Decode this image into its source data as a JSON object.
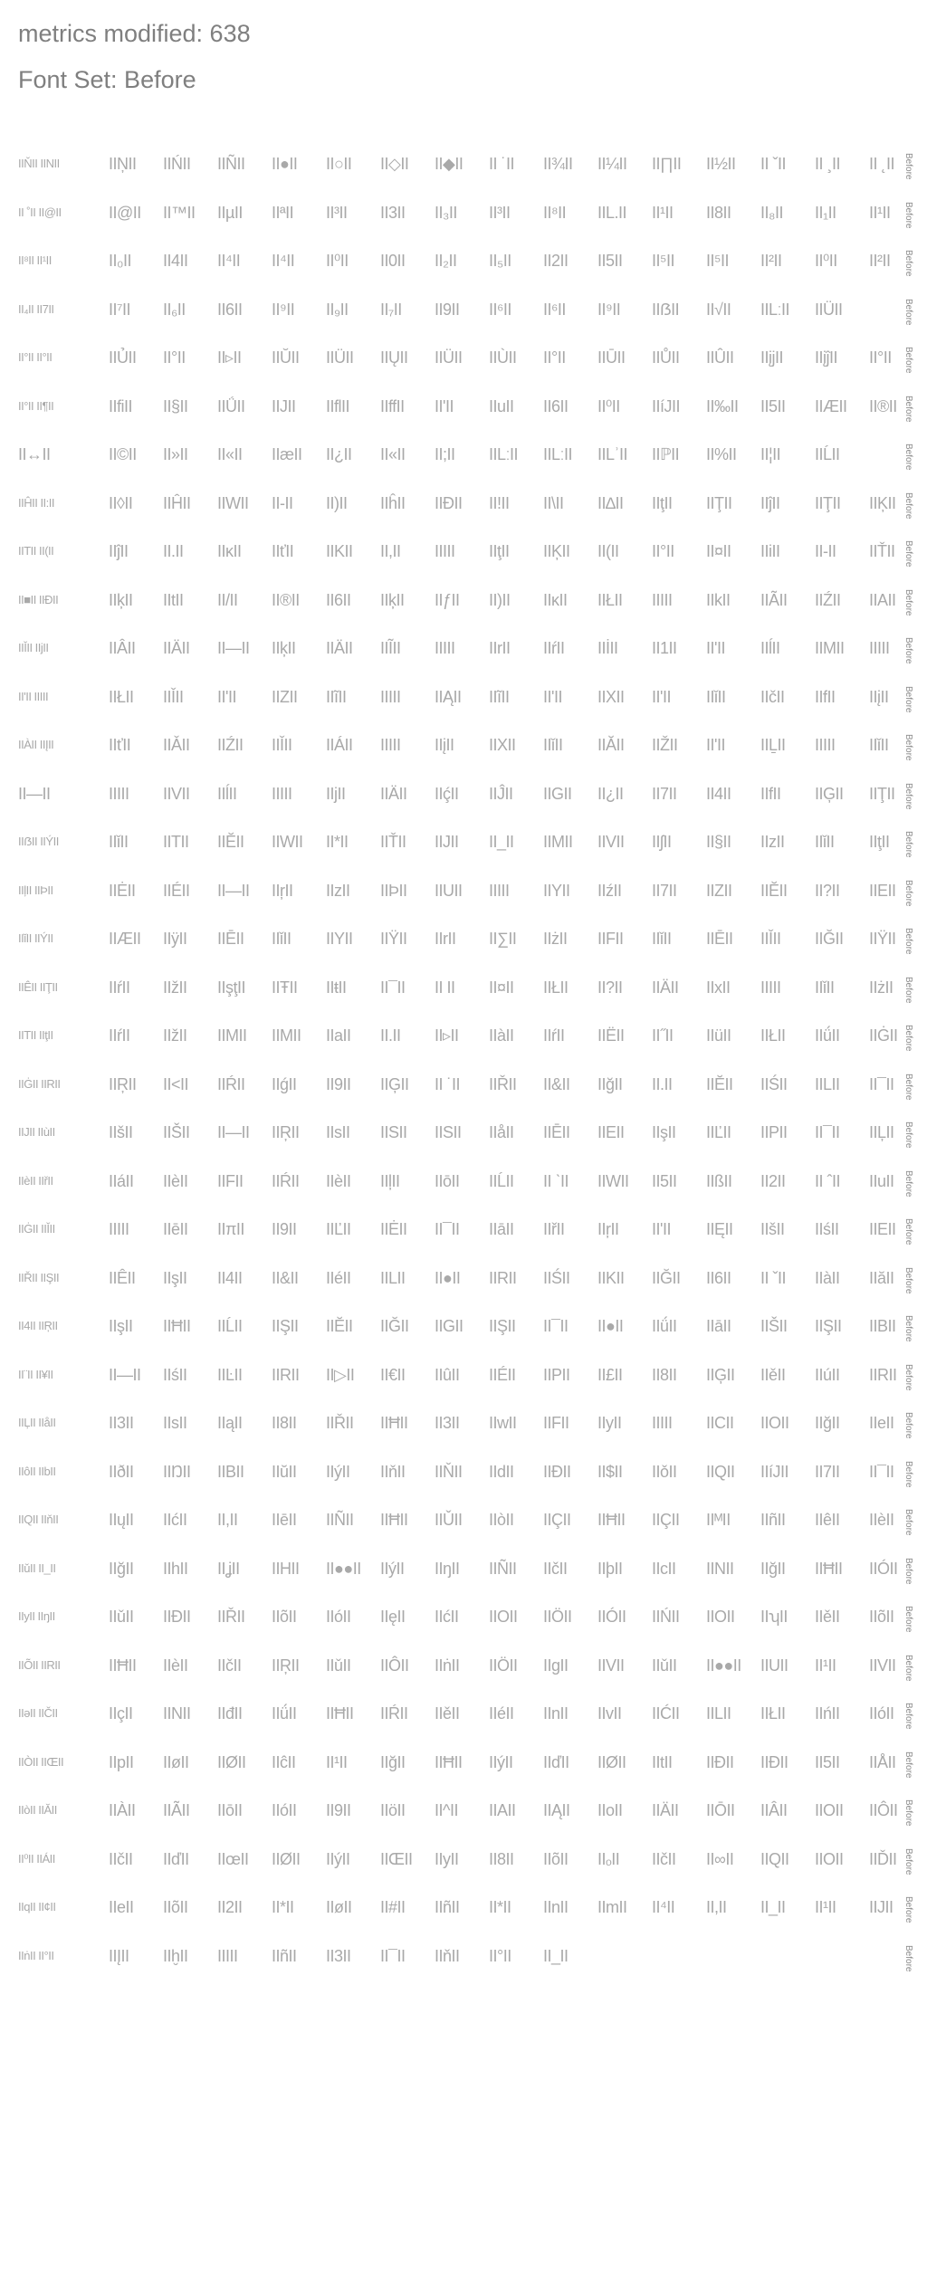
{
  "header": {
    "line1": "metrics modified: 638",
    "line2": "Font Set: Before"
  },
  "row_tag": "Before",
  "rows": [
    [
      "IIŇII IINII",
      "IIŅII",
      "IIŃII",
      "IIÑII",
      "II●II",
      "II○II",
      "II◇II",
      "II◆II",
      "II ˙II",
      "II¾II",
      "II¼II",
      "II∏II",
      "II½II",
      "II ˇII",
      "II ¸II",
      "II ˛II"
    ],
    [
      "II ˚II II@II",
      "II@II",
      "II™II",
      "IIµII",
      "IIªII",
      "II³II",
      "II3II",
      "II₃II",
      "II³II",
      "II⁸II",
      "IIL.II",
      "II¹II",
      "II8II",
      "II₈II",
      "II₁II",
      "II¹II"
    ],
    [
      "II⁸II II¹II",
      "II₀II",
      "II4II",
      "II⁴II",
      "II⁴II",
      "II⁰II",
      "II0II",
      "II₂II",
      "II₅II",
      "II2II",
      "II5II",
      "II⁵II",
      "II⁵II",
      "II²II",
      "II⁰II",
      "II²II"
    ],
    [
      "II₄II II7II",
      "II⁷II",
      "II₆II",
      "II6II",
      "II⁹II",
      "II₉II",
      "II₇II",
      "II9II",
      "II⁶II",
      "II⁶II",
      "II⁹II",
      "IIẞII",
      "II√II",
      "IILːII",
      "IIÜII"
    ],
    [
      "II°II II°II",
      "IIỦII",
      "II°II",
      "II▹II",
      "IIŬII",
      "IIÜII",
      "IIŲII",
      "IIÜII",
      "IIÙII",
      "II°II",
      "IIŪII",
      "IIŮII",
      "IIÛII",
      "IIįjII",
      "IIįĵII",
      "II°II"
    ],
    [
      "II°II II¶II",
      "IIfiII",
      "II§II",
      "IIǗII",
      "IIJII",
      "IIflII",
      "IIffII",
      "IIʹII",
      "IIuII",
      "II6II",
      "II⁰II",
      "IIíJII",
      "II‰II",
      "II5II",
      "IIÆII",
      "II®II"
    ],
    [
      "II↔II",
      "II©II",
      "II»II",
      "II«II",
      "IIæII",
      "II¿II",
      "II«II",
      "II;II",
      "IILːII",
      "IILːII",
      "IILʾII",
      "IIℙII",
      "II%II",
      "II¦II",
      "IIĹII"
    ],
    [
      "IIĤII II:II",
      "II◊II",
      "IIĤII",
      "IIWII",
      "II-II",
      "II)II",
      "IIĥII",
      "IIÐII",
      "II!II",
      "II\\II",
      "II∆II",
      "IIţII",
      "IIŢII",
      "IIĵII",
      "IIŢII",
      "IIĶII"
    ],
    [
      "IITII II(II",
      "IIĵII",
      "II.II",
      "IIĸII",
      "IIťII",
      "IIKII",
      "II,II",
      "IIIII",
      "IIţII",
      "IIĶII",
      "II(II",
      "II°II",
      "II¤II",
      "IIiII",
      "II-II",
      "IIŤII"
    ],
    [
      "II■II IIÐII",
      "IIķII",
      "IItII",
      "II/II",
      "II®II",
      "II6II",
      "IIķII",
      "IIƒII",
      "II)II",
      "IIĸII",
      "IIŁII",
      "IIIII",
      "IIkII",
      "IIÃII",
      "IIŹII",
      "IIAII"
    ],
    [
      "IIǏII IIjII",
      "IIÂII",
      "IIÄII",
      "II—II",
      "IIķII",
      "IIÄII",
      "IIĨII",
      "IIIII",
      "IIrII",
      "IIŕII",
      "IIİII",
      "II1II",
      "II'II",
      "IIĺII",
      "IIMII",
      "IIIII"
    ],
    [
      "II'II IIIII",
      "IIŁII",
      "IIǏII",
      "II'II",
      "IIZII",
      "IIĩII",
      "IIIII",
      "IIĄII",
      "IIĩII",
      "II'II",
      "IIXII",
      "II'II",
      "IIǐII",
      "IIčII",
      "IIfII",
      "IIįII"
    ],
    [
      "IIÀII IIĮII",
      "IIťII",
      "IIǍII",
      "IIŹII",
      "IIǏII",
      "IIÁII",
      "IIIII",
      "IIįII",
      "IIXII",
      "IIǐII",
      "IIĂII",
      "IIŽII",
      "II'II",
      "IIḺII",
      "IIIII",
      "IIǐII"
    ],
    [
      "II—II",
      "IIIII",
      "IIVII",
      "IIĺII",
      "IIIII",
      "IIjII",
      "IIÄII",
      "IIḉII",
      "IIĴII",
      "IIGII",
      "II¿II",
      "II7II",
      "II4II",
      "IIfII",
      "IIĢII",
      "IIŢII"
    ],
    [
      "IIẞII IIÝII",
      "IIǐII",
      "IITII",
      "IIĔII",
      "IIWII",
      "II*II",
      "IIŤII",
      "IIJII",
      "II_II",
      "IIMII",
      "IIVII",
      "IIʃII",
      "II§II",
      "IIzII",
      "IIǐII",
      "IIţII"
    ],
    [
      "IIļII IIÞII",
      "IIĖII",
      "IIÉII",
      "II—II",
      "IIŗII",
      "IIzII",
      "IIÞII",
      "IIUII",
      "IIIII",
      "IIYII",
      "IIźII",
      "II7II",
      "IIZII",
      "IIĔII",
      "II?II",
      "IIEII"
    ],
    [
      "IIǐII IIÝII",
      "IIÆII",
      "IIÿII",
      "IIĒII",
      "IIǐII",
      "IIYII",
      "IIŸII",
      "IIrII",
      "II∑II",
      "IIżII",
      "IIFII",
      "IIǐII",
      "IIĒII",
      "IIǏII",
      "IIĞII",
      "IIŸII"
    ],
    [
      "IIÊII IIŢII",
      "IIŕII",
      "IIžII",
      "IIşţII",
      "IIŦII",
      "IIŧII",
      "II¯II",
      "II II",
      "II¤II",
      "IIŁII",
      "II?II",
      "IIÄII",
      "IIxII",
      "IIIII",
      "IIǐII",
      "IIżII"
    ],
    [
      "IITII IIţII",
      "IIŕII",
      "IIžII",
      "IIMII",
      "IIMII",
      "IIaII",
      "II.II",
      "II▹II",
      "IIàII",
      "IIŕII",
      "IIËII",
      "II˝II",
      "IIüII",
      "IIŁII",
      "IIǘII",
      "IIĠII"
    ],
    [
      "IIĠII IIRII",
      "IIŖII",
      "II<II",
      "IIŔII",
      "IIǵII",
      "II9II",
      "IIĢII",
      "II ˙II",
      "IIŘII",
      "II&II",
      "IIğII",
      "II.II",
      "IIĔII",
      "IIŚII",
      "IILII",
      "II¯II"
    ],
    [
      "IIJII IIùII",
      "IIšII",
      "IIŠII",
      "II—II",
      "IIŖII",
      "IIsII",
      "IISII",
      "IISII",
      "IIåII",
      "IIĒII",
      "IIEII",
      "IIşII",
      "IIĽII",
      "IIPII",
      "II¯II",
      "IIĻII"
    ],
    [
      "IIèII IIřII",
      "IIáII",
      "IIèII",
      "IIFII",
      "IIŔII",
      "IIèII",
      "IIļII",
      "IIōII",
      "IIĹII",
      "II ˋII",
      "IIWII",
      "II5II",
      "IIßII",
      "II2II",
      "II ˆII",
      "IIuII"
    ],
    [
      "IIĠII IIǏII",
      "IIIII",
      "IIēII",
      "IIπII",
      "II9II",
      "IIĽII",
      "IIĖII",
      "II¯II",
      "IIāII",
      "IIřII",
      "IIŗII",
      "II'II",
      "IIĘII",
      "IIšII",
      "IIśII",
      "IIEII"
    ],
    [
      "IIŘII IIŞII",
      "IIÊII",
      "IIşII",
      "II4II",
      "II&II",
      "IIéII",
      "IILII",
      "II●II",
      "IIRII",
      "IIŚII",
      "IIKII",
      "IIĞII",
      "II6II",
      "II ˇII",
      "IIàII",
      "IIăII"
    ],
    [
      "II4II IIŖII",
      "IIşII",
      "IIĦII",
      "IIĹII",
      "IIŞII",
      "IIĔII",
      "IIĞII",
      "IIGII",
      "IIŞII",
      "II¯II",
      "II●II",
      "IIǘII",
      "IIāII",
      "IIŠII",
      "IIŞII",
      "IIBII"
    ],
    [
      "II¨II II¥II",
      "II—II",
      "IIśII",
      "IIĿII",
      "IIRII",
      "II▷II",
      "II€II",
      "IIûII",
      "IIÉII",
      "IIPII",
      "II£II",
      "II8II",
      "IIĢII",
      "IIěII",
      "IIúII",
      "IIRII"
    ],
    [
      "IIĻII IIåII",
      "II3II",
      "IIsII",
      "IIąII",
      "II8II",
      "IIŘII",
      "IIĦII",
      "II3II",
      "IIwII",
      "IIFII",
      "IIyII",
      "IIIII",
      "IICII",
      "IIOII",
      "IIğII",
      "IIeII"
    ],
    [
      "IIôII IIbII",
      "IIðII",
      "IIŊII",
      "IIBII",
      "IIŭII",
      "IIýII",
      "IIňII",
      "IIŇII",
      "IIdII",
      "IIĐII",
      "II$II",
      "IIǒII",
      "IIQII",
      "IIíJII",
      "II7II",
      "II¯II"
    ],
    [
      "IIQII IIňII",
      "IIųII",
      "IIćII",
      "II,II",
      "IIēII",
      "IIÑII",
      "IIĦII",
      "IIǓII",
      "IIòII",
      "IIÇII",
      "IIĦII",
      "IIÇII",
      "IIᴹII",
      "IIñII",
      "IIêII",
      "IIèII"
    ],
    [
      "IIǔII II_II",
      "IIğII",
      "IIhII",
      "IIʝII",
      "IIHII",
      "II●●II",
      "IIýII",
      "IIŋII",
      "IIÑII",
      "IIčII",
      "IIþII",
      "IIcII",
      "IINII",
      "IIğII",
      "IIĦII",
      "IIÓII"
    ],
    [
      "IIyII IIŋII",
      "IIǔII",
      "IIĐII",
      "IIŘII",
      "IIõII",
      "IIóII",
      "IIęII",
      "IIćII",
      "IIOII",
      "IIÖII",
      "IIÓII",
      "IIŃII",
      "IIOII",
      "IIʮII",
      "IIěII",
      "IIõII"
    ],
    [
      "IIÕII IIRII",
      "IIĦII",
      "IIèII",
      "IIčII",
      "IIŖII",
      "IIǔII",
      "IIÔII",
      "IIṅII",
      "IIÖII",
      "IIgII",
      "IIVII",
      "IIǔII",
      "II●●II",
      "IIUII",
      "II¹II",
      "IIVII"
    ],
    [
      "IIəII IIČII",
      "IIçII",
      "IINII",
      "IIđII",
      "IIǘII",
      "IIĦII",
      "IIŔII",
      "IIěII",
      "IIéII",
      "IInII",
      "IIvII",
      "IIĆII",
      "IILII",
      "IIŁII",
      "IIńII",
      "IIóII"
    ],
    [
      "IIÒII IIŒII",
      "IIpII",
      "IIøII",
      "IIØII",
      "IIĉII",
      "II¹II",
      "IIğII",
      "IIĦII",
      "IIýII",
      "IIďII",
      "IIØII",
      "IItII",
      "IIĐII",
      "IIĐII",
      "II5II",
      "IIÅII"
    ],
    [
      "IIòII IIĂII",
      "IIÀII",
      "IIÃII",
      "IIōII",
      "IIóII",
      "II9II",
      "IIöII",
      "II^II",
      "IIAII",
      "IIĄII",
      "IIoII",
      "IIÄII",
      "IIŌII",
      "IIÂII",
      "IIOII",
      "IIÔII"
    ],
    [
      "II⁰II IIÁII",
      "IIčII",
      "IIďII",
      "IIœII",
      "IIØII",
      "IIýII",
      "IIŒII",
      "IIyII",
      "II8II",
      "IIõII",
      "IIₒII",
      "IIčII",
      "II∞II",
      "IIQII",
      "IIOII",
      "IIĎII"
    ],
    [
      "IIqII II¢II",
      "IIeII",
      "IIõII",
      "II2II",
      "II*II",
      "IIøII",
      "II#II",
      "IIñII",
      "II*II",
      "IInII",
      "IImII",
      "II⁴II",
      "II,II",
      "II_II",
      "II¹II",
      "IIJII"
    ],
    [
      "IIṅII II°II",
      "IIĮII",
      "IIḫII",
      "IIIII",
      "IIñII",
      "II3II",
      "II¯II",
      "IIňII",
      "II°II",
      "II_II"
    ]
  ]
}
